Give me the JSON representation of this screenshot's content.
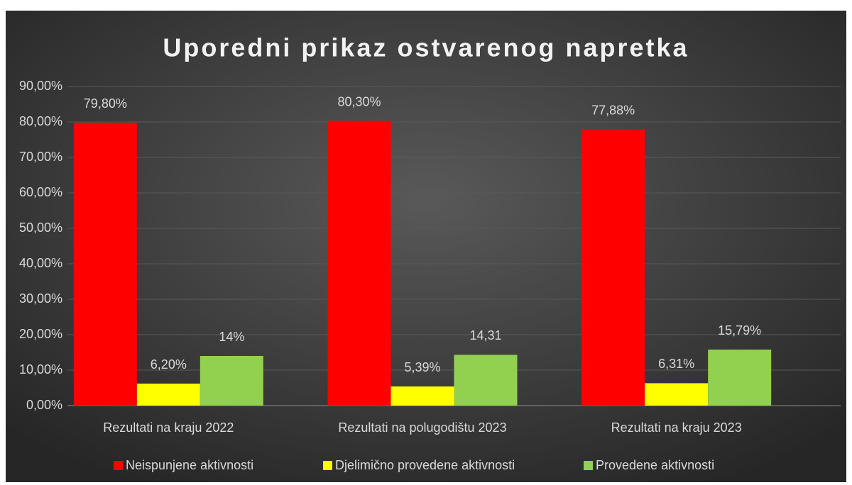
{
  "chart_data": {
    "type": "bar",
    "title": "Uporedni prikaz ostvarenog napretka",
    "categories": [
      "Rezultati na kraju 2022",
      "Rezultati na polugodištu 2023",
      "Rezultati na kraju 2023"
    ],
    "series": [
      {
        "name": "Neispunjene aktivnosti",
        "color": "#ff0000",
        "values": [
          79.8,
          80.3,
          77.88
        ],
        "value_labels": [
          "79,80%",
          "80,30%",
          "77,88%"
        ]
      },
      {
        "name": "Djelimično provedene aktivnosti",
        "color": "#ffff00",
        "values": [
          6.2,
          5.39,
          6.31
        ],
        "value_labels": [
          "6,20%",
          "5,39%",
          "6,31%"
        ]
      },
      {
        "name": "Provedene aktivnosti",
        "color": "#92d050",
        "values": [
          14,
          14.31,
          15.79
        ],
        "value_labels": [
          "14%",
          "14,31",
          "15,79%"
        ]
      }
    ],
    "ylim": [
      0,
      90
    ],
    "yticks": [
      {
        "value": 0,
        "label": "0,00%"
      },
      {
        "value": 10,
        "label": "10,00%"
      },
      {
        "value": 20,
        "label": "20,00%"
      },
      {
        "value": 30,
        "label": "30,00%"
      },
      {
        "value": 40,
        "label": "40,00%"
      },
      {
        "value": 50,
        "label": "50,00%"
      },
      {
        "value": 60,
        "label": "60,00%"
      },
      {
        "value": 70,
        "label": "70,00%"
      },
      {
        "value": 80,
        "label": "80,00%"
      },
      {
        "value": 90,
        "label": "90,00%"
      }
    ],
    "grid": true,
    "legend": "bottom"
  }
}
